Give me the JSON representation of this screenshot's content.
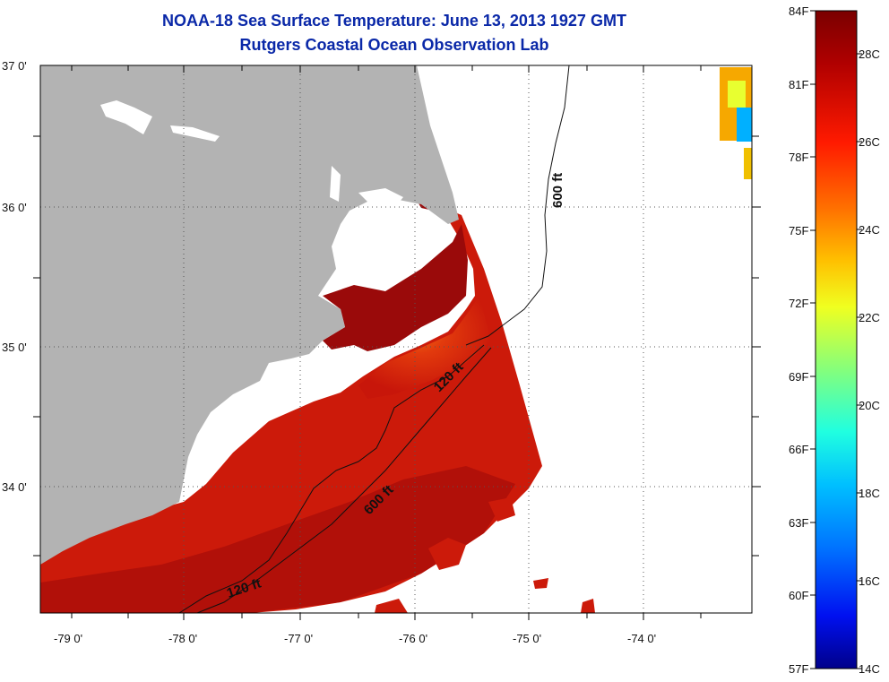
{
  "title": {
    "line1": "NOAA-18 Sea Surface Temperature:  June 13, 2013 1927 GMT",
    "line2": "Rutgers Coastal Ocean Observation Lab"
  },
  "map": {
    "lon_labels": [
      "-79 0'",
      "-78 0'",
      "-77 0'",
      "-76 0'",
      "-75 0'",
      "-74 0'"
    ],
    "lat_labels": [
      "37 0'",
      "36 0'",
      "35 0'",
      "34 0'"
    ],
    "contour_labels": [
      "600 ft",
      "120 ft",
      "600 ft",
      "120 ft"
    ],
    "colors": {
      "land": "#b3b3b3",
      "ocean_warm": "#cc1a0a",
      "ocean_hot": "#9a0a0a",
      "ocean_mid": "#f06a12"
    }
  },
  "colorbar": {
    "fahrenheit_labels": [
      "84F",
      "81F",
      "78F",
      "75F",
      "72F",
      "69F",
      "66F",
      "63F",
      "60F",
      "57F"
    ],
    "celsius_labels": [
      "28C",
      "26C",
      "24C",
      "22C",
      "20C",
      "18C",
      "16C",
      "14C"
    ],
    "colors": [
      "#7a0000",
      "#c80000",
      "#ff2a00",
      "#ff8000",
      "#ffd400",
      "#b8ff40",
      "#40ffb8",
      "#00d8ff",
      "#0080ff",
      "#0010ff",
      "#00009a"
    ]
  }
}
